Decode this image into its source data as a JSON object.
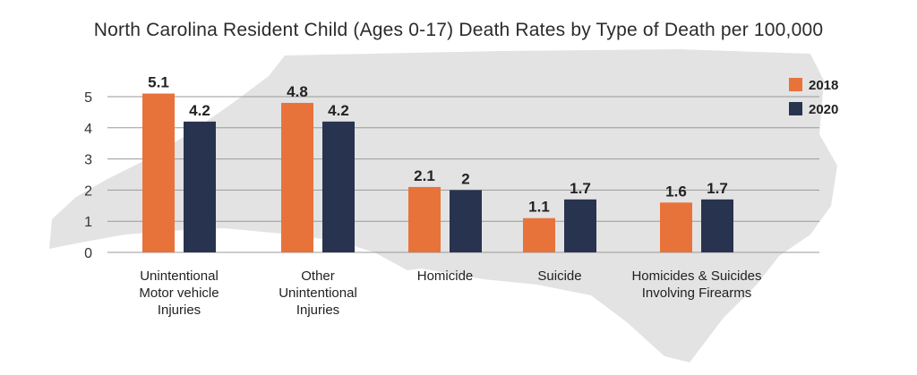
{
  "chart_data": {
    "type": "bar",
    "title": "North Carolina Resident Child (Ages 0-17) Death Rates by Type of Death per 100,000",
    "categories": [
      [
        "Unintentional",
        "Motor vehicle",
        "Injuries"
      ],
      [
        "Other",
        "Unintentional",
        "Injuries"
      ],
      [
        "Homicide"
      ],
      [
        "Suicide"
      ],
      [
        "Homicides & Suicides",
        "Involving Firearms"
      ]
    ],
    "series": [
      {
        "name": "2018",
        "color": "#e8733a",
        "values": [
          5.1,
          4.8,
          2.1,
          1.1,
          1.6
        ],
        "labels": [
          "5.1",
          "4.8",
          "2.1",
          "1.1",
          "1.6"
        ]
      },
      {
        "name": "2020",
        "color": "#28334f",
        "values": [
          4.2,
          4.2,
          2.0,
          1.7,
          1.7
        ],
        "labels": [
          "4.2",
          "4.2",
          "2",
          "1.7",
          "1.7"
        ]
      }
    ],
    "ylim": [
      0,
      5
    ],
    "yticks": [
      0,
      1,
      2,
      3,
      4,
      5
    ],
    "grid": true,
    "legend": "top-right",
    "background_shape": "north-carolina-map",
    "background_color": "#e3e3e3",
    "grid_color": "#9a9a9a"
  }
}
